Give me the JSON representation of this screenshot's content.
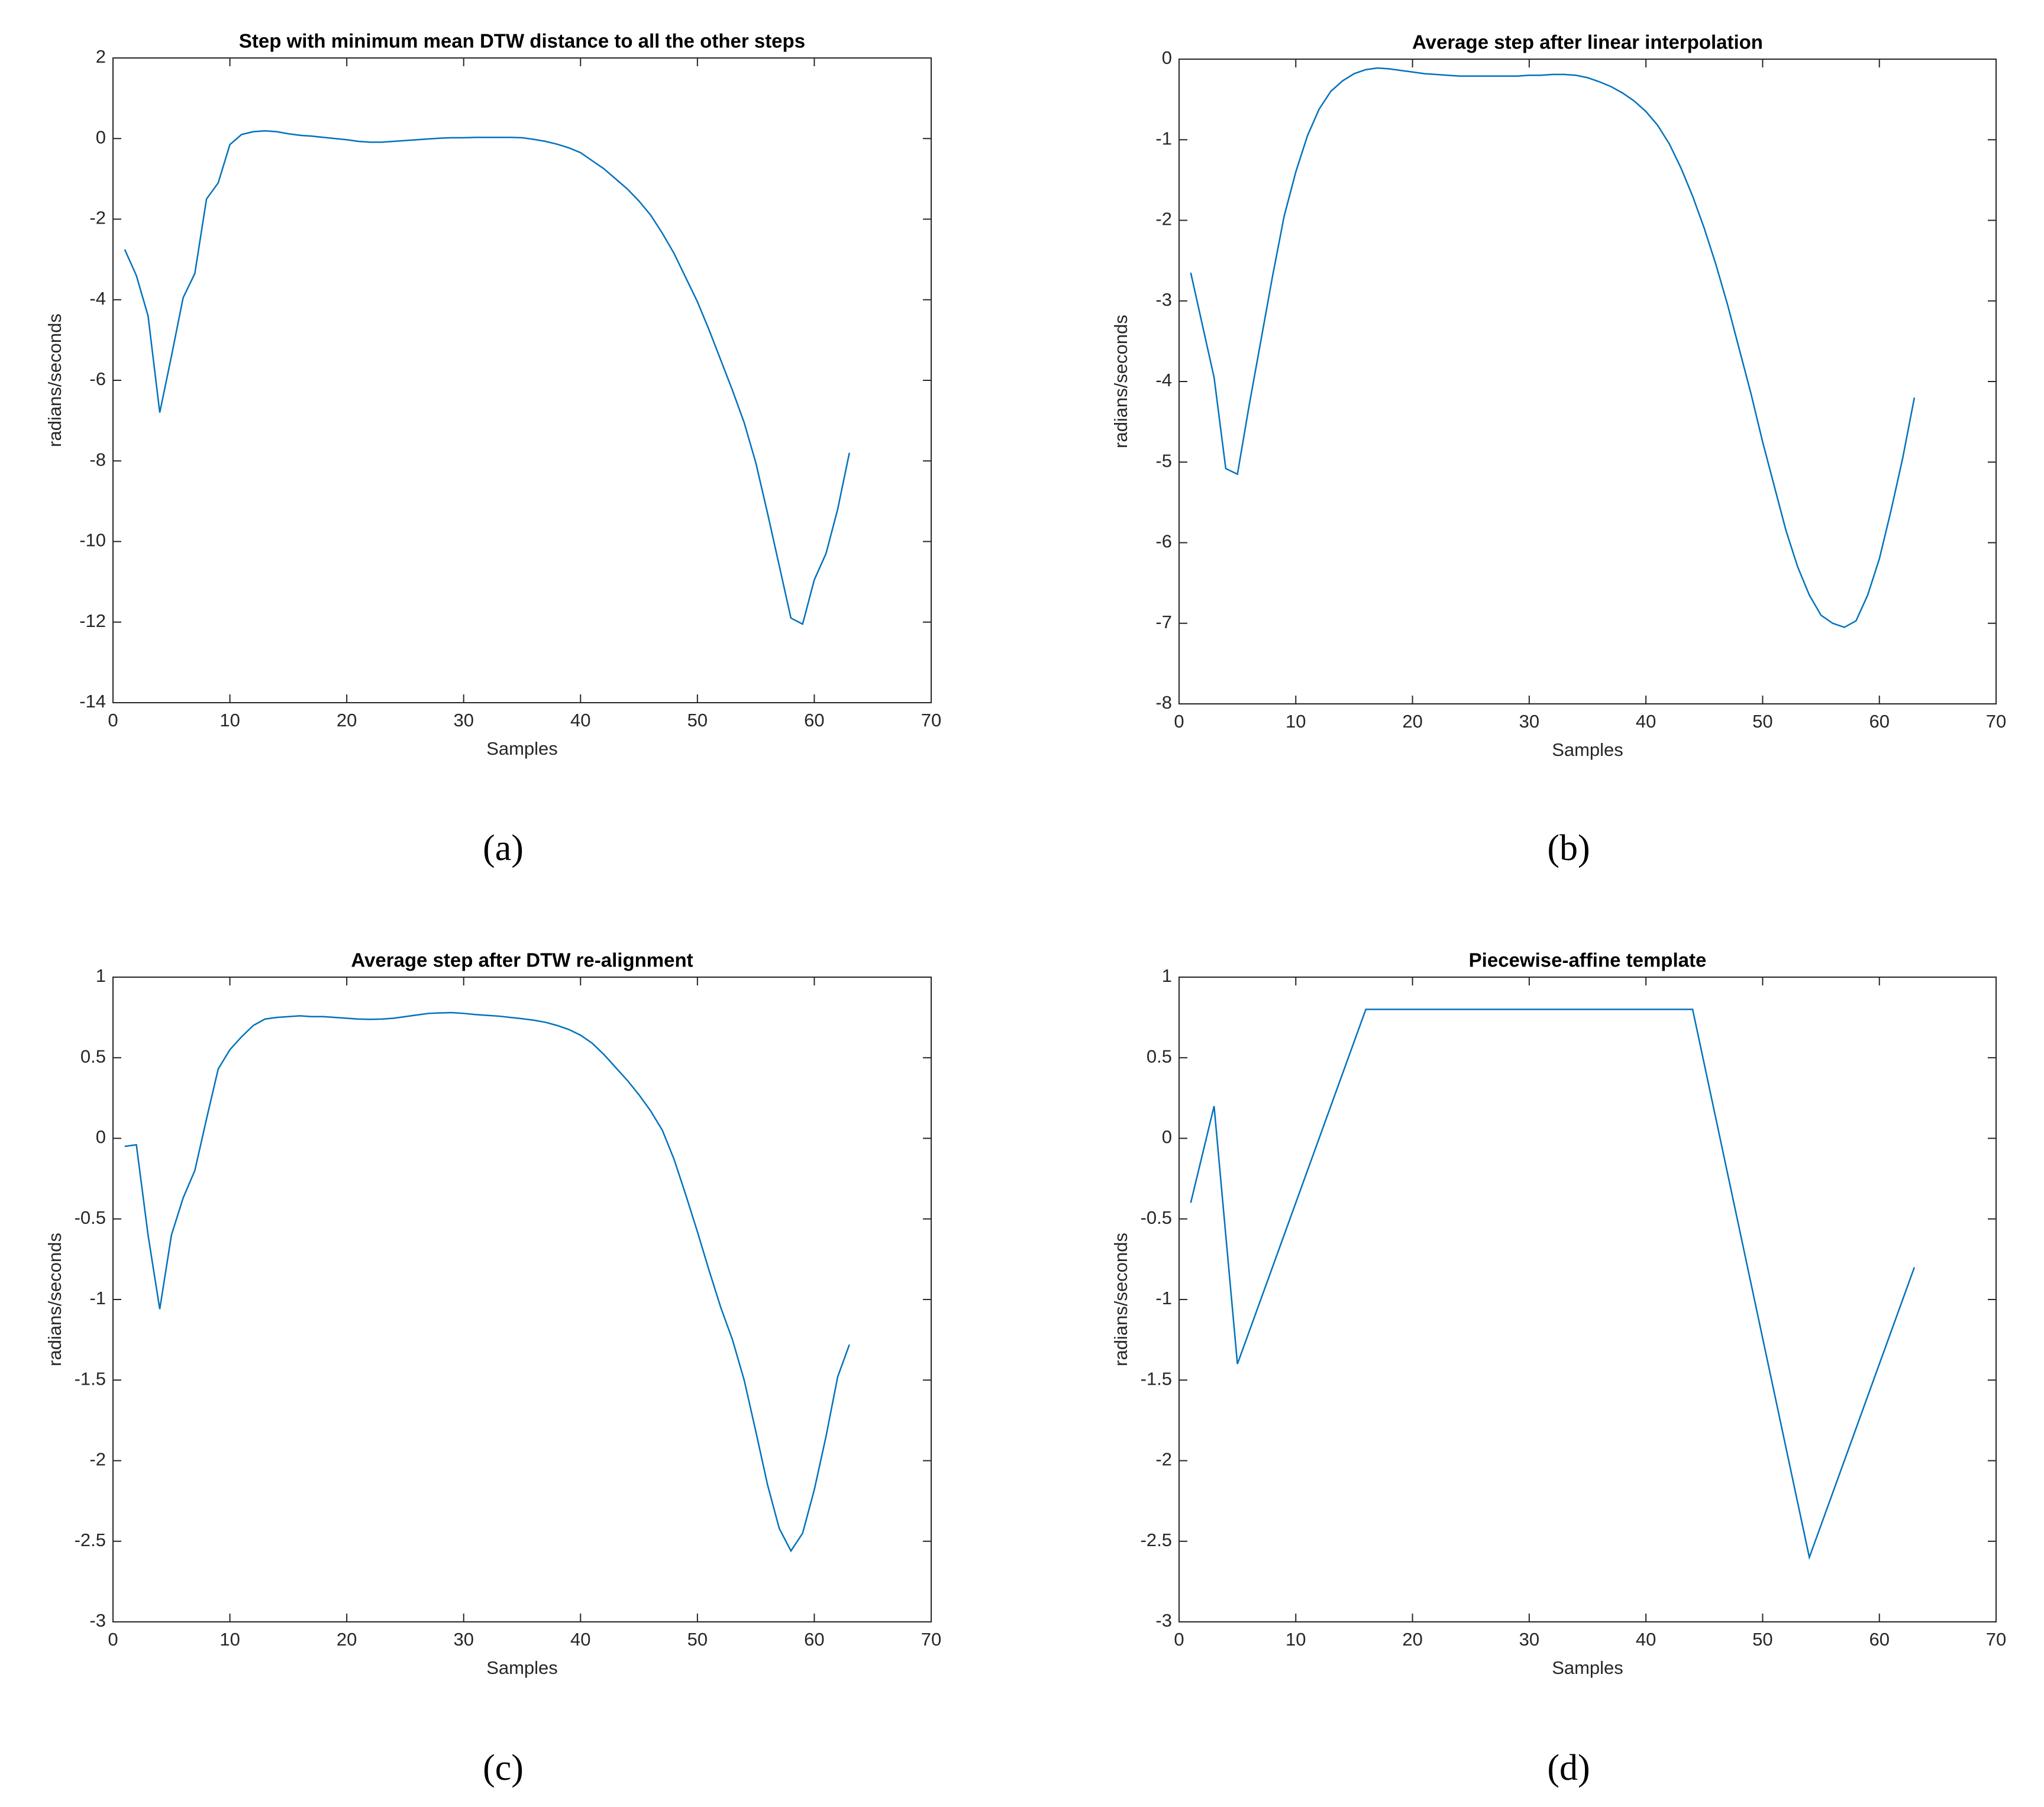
{
  "chart_data": [
    {
      "type": "line",
      "title": "Step with minimum mean DTW distance to all the other steps",
      "xlabel": "Samples",
      "ylabel": "radians/seconds",
      "caption": "(a)",
      "color": "#0072bd",
      "x": [
        1,
        2,
        3,
        4,
        5,
        6,
        7,
        8,
        9,
        10,
        11,
        12,
        13,
        14,
        15,
        16,
        17,
        18,
        19,
        20,
        21,
        22,
        23,
        24,
        25,
        26,
        27,
        28,
        29,
        30,
        31,
        32,
        33,
        34,
        35,
        36,
        37,
        38,
        39,
        40,
        41,
        42,
        43,
        44,
        45,
        46,
        47,
        48,
        49,
        50,
        51,
        52,
        53,
        54,
        55,
        56,
        57,
        58,
        59,
        60,
        61,
        62,
        63
      ],
      "values": [
        -2.75,
        -3.4,
        -4.4,
        -6.8,
        -5.4,
        -3.95,
        -3.35,
        -1.5,
        -1.1,
        -0.15,
        0.1,
        0.17,
        0.19,
        0.17,
        0.12,
        0.08,
        0.06,
        0.03,
        0.0,
        -0.03,
        -0.07,
        -0.09,
        -0.09,
        -0.07,
        -0.05,
        -0.03,
        -0.01,
        0.01,
        0.02,
        0.02,
        0.03,
        0.03,
        0.03,
        0.03,
        0.02,
        -0.02,
        -0.07,
        -0.14,
        -0.23,
        -0.35,
        -0.55,
        -0.75,
        -1.0,
        -1.25,
        -1.55,
        -1.9,
        -2.35,
        -2.85,
        -3.45,
        -4.05,
        -4.75,
        -5.5,
        -6.25,
        -7.05,
        -8.05,
        -9.3,
        -10.6,
        -11.9,
        -12.05,
        -10.95,
        -10.3,
        -9.2,
        -7.8
      ],
      "xlim": [
        0,
        70
      ],
      "xticks": [
        0,
        10,
        20,
        30,
        40,
        50,
        60,
        70
      ],
      "ylim": [
        -14,
        2
      ],
      "yticks": [
        -14,
        -12,
        -10,
        -8,
        -6,
        -4,
        -2,
        0,
        2
      ]
    },
    {
      "type": "line",
      "title": "Average step after linear interpolation",
      "xlabel": "Samples",
      "ylabel": "radians/seconds",
      "caption": "(b)",
      "color": "#0072bd",
      "x": [
        1,
        2,
        3,
        4,
        5,
        6,
        7,
        8,
        9,
        10,
        11,
        12,
        13,
        14,
        15,
        16,
        17,
        18,
        19,
        20,
        21,
        22,
        23,
        24,
        25,
        26,
        27,
        28,
        29,
        30,
        31,
        32,
        33,
        34,
        35,
        36,
        37,
        38,
        39,
        40,
        41,
        42,
        43,
        44,
        45,
        46,
        47,
        48,
        49,
        50,
        51,
        52,
        53,
        54,
        55,
        56,
        57,
        58,
        59,
        60,
        61,
        62,
        63
      ],
      "values": [
        -2.65,
        -3.3,
        -3.95,
        -5.08,
        -5.15,
        -4.3,
        -3.5,
        -2.7,
        -1.95,
        -1.4,
        -0.95,
        -0.62,
        -0.4,
        -0.27,
        -0.18,
        -0.13,
        -0.11,
        -0.12,
        -0.14,
        -0.16,
        -0.18,
        -0.19,
        -0.2,
        -0.21,
        -0.21,
        -0.21,
        -0.21,
        -0.21,
        -0.21,
        -0.2,
        -0.2,
        -0.19,
        -0.19,
        -0.2,
        -0.23,
        -0.28,
        -0.34,
        -0.42,
        -0.52,
        -0.65,
        -0.82,
        -1.05,
        -1.35,
        -1.7,
        -2.1,
        -2.55,
        -3.05,
        -3.6,
        -4.15,
        -4.75,
        -5.3,
        -5.85,
        -6.3,
        -6.65,
        -6.9,
        -7.0,
        -7.05,
        -6.97,
        -6.65,
        -6.2,
        -5.6,
        -4.95,
        -4.2
      ],
      "xlim": [
        0,
        70
      ],
      "xticks": [
        0,
        10,
        20,
        30,
        40,
        50,
        60,
        70
      ],
      "ylim": [
        -8,
        0
      ],
      "yticks": [
        -8,
        -7,
        -6,
        -5,
        -4,
        -3,
        -2,
        -1,
        0
      ]
    },
    {
      "type": "line",
      "title": "Average step after DTW re-alignment",
      "xlabel": "Samples",
      "ylabel": "radians/seconds",
      "caption": "(c)",
      "color": "#0072bd",
      "x": [
        1,
        2,
        3,
        4,
        5,
        6,
        7,
        8,
        9,
        10,
        11,
        12,
        13,
        14,
        15,
        16,
        17,
        18,
        19,
        20,
        21,
        22,
        23,
        24,
        25,
        26,
        27,
        28,
        29,
        30,
        31,
        32,
        33,
        34,
        35,
        36,
        37,
        38,
        39,
        40,
        41,
        42,
        43,
        44,
        45,
        46,
        47,
        48,
        49,
        50,
        51,
        52,
        53,
        54,
        55,
        56,
        57,
        58,
        59,
        60,
        61,
        62,
        63
      ],
      "values": [
        -0.05,
        -0.04,
        -0.6,
        -1.06,
        -0.6,
        -0.37,
        -0.2,
        0.12,
        0.43,
        0.55,
        0.63,
        0.7,
        0.74,
        0.75,
        0.755,
        0.76,
        0.755,
        0.755,
        0.75,
        0.745,
        0.74,
        0.738,
        0.74,
        0.745,
        0.755,
        0.765,
        0.775,
        0.778,
        0.78,
        0.775,
        0.768,
        0.763,
        0.758,
        0.75,
        0.742,
        0.733,
        0.72,
        0.7,
        0.675,
        0.64,
        0.59,
        0.52,
        0.44,
        0.36,
        0.27,
        0.17,
        0.05,
        -0.13,
        -0.35,
        -0.58,
        -0.82,
        -1.05,
        -1.25,
        -1.5,
        -1.82,
        -2.15,
        -2.42,
        -2.56,
        -2.45,
        -2.18,
        -1.85,
        -1.48,
        -1.28
      ],
      "xlim": [
        0,
        70
      ],
      "xticks": [
        0,
        10,
        20,
        30,
        40,
        50,
        60,
        70
      ],
      "ylim": [
        -3,
        1
      ],
      "yticks": [
        -3,
        -2.5,
        -2,
        -1.5,
        -1,
        -0.5,
        0,
        0.5,
        1
      ]
    },
    {
      "type": "line",
      "title": "Piecewise-affine template",
      "xlabel": "Samples",
      "ylabel": "radians/seconds",
      "caption": "(d)",
      "color": "#0072bd",
      "x": [
        1,
        3,
        5,
        16,
        44,
        54,
        63
      ],
      "values": [
        -0.4,
        0.2,
        -1.4,
        0.8,
        0.8,
        -2.6,
        -0.8
      ],
      "xlim": [
        0,
        70
      ],
      "xticks": [
        0,
        10,
        20,
        30,
        40,
        50,
        60,
        70
      ],
      "ylim": [
        -3,
        1
      ],
      "yticks": [
        -3,
        -2.5,
        -2,
        -1.5,
        -1,
        -0.5,
        0,
        0.5,
        1
      ]
    }
  ]
}
